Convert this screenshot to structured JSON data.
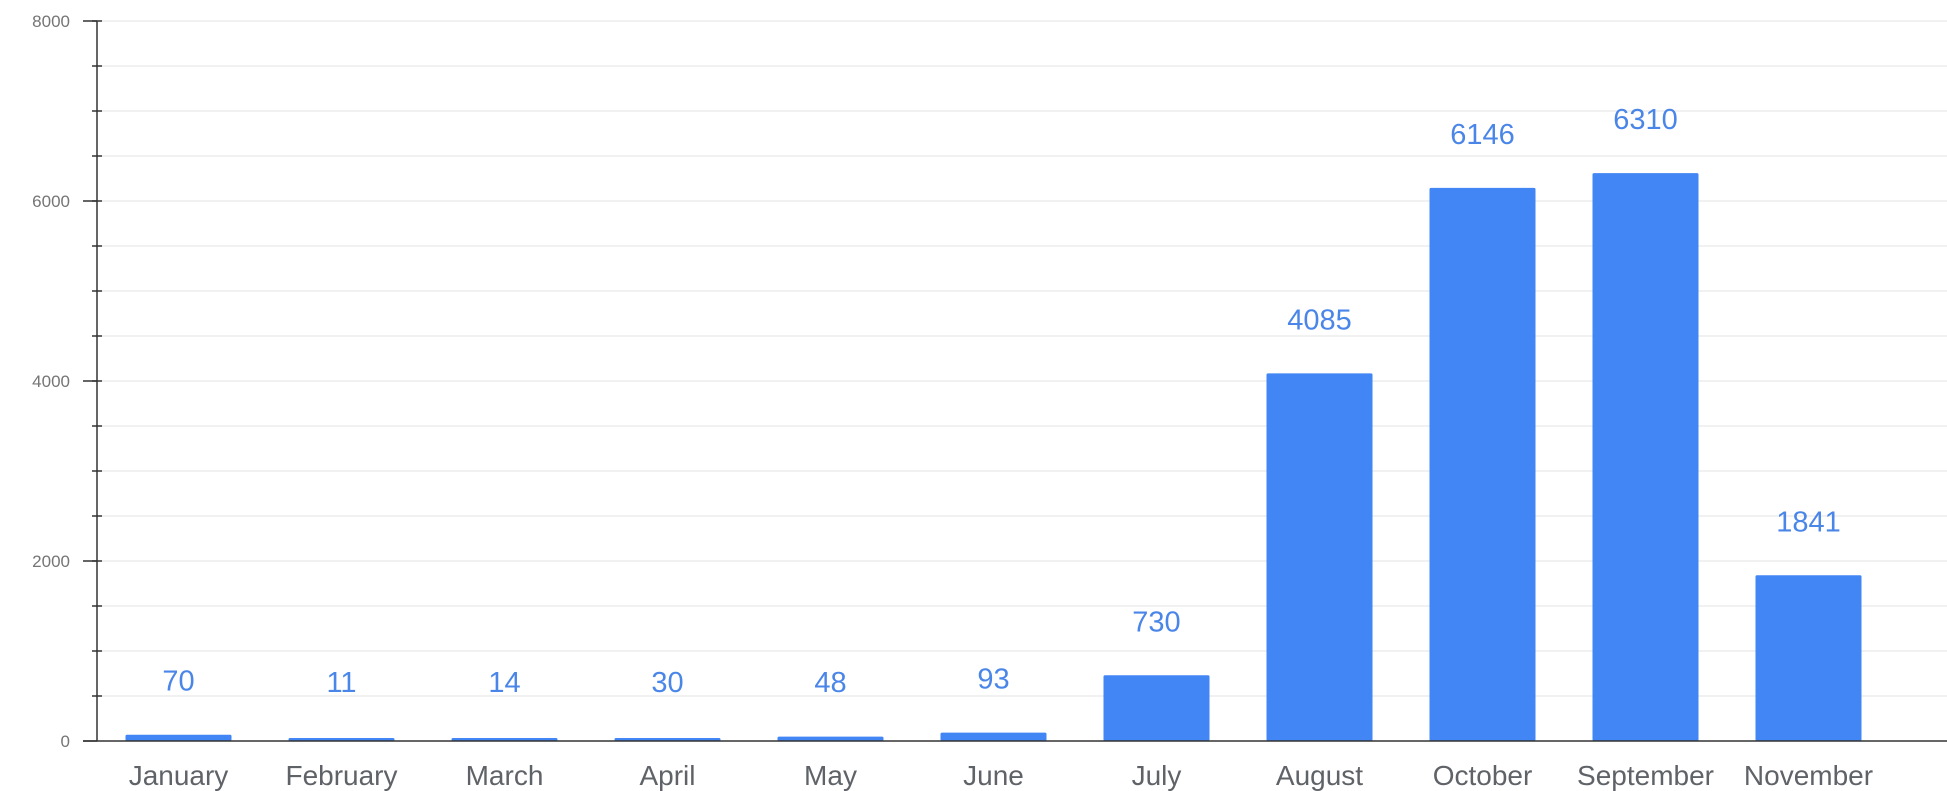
{
  "chart_data": {
    "type": "bar",
    "categories": [
      "January",
      "February",
      "March",
      "April",
      "May",
      "June",
      "July",
      "August",
      "October",
      "September",
      "November"
    ],
    "values": [
      70,
      11,
      14,
      30,
      48,
      93,
      730,
      4085,
      6146,
      6310,
      1841
    ],
    "data_labels": [
      "70",
      "11",
      "14",
      "30",
      "48",
      "93",
      "730",
      "4085",
      "6146",
      "6310",
      "1841"
    ],
    "y_ticks": [
      0,
      2000,
      4000,
      6000,
      8000
    ],
    "y_tick_labels": [
      "0",
      "2000",
      "4000",
      "6000",
      "8000"
    ],
    "ylim": [
      0,
      8000
    ],
    "y_minor_step": 500,
    "grid": true,
    "legend": "none",
    "bar_color": "#4285f4",
    "label_color": "#4a86e8"
  }
}
